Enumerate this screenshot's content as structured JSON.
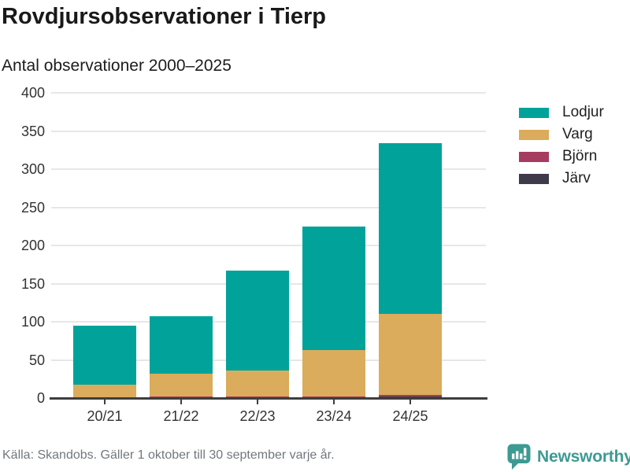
{
  "header": {
    "title": "Rovdjursobservationer i Tierp",
    "subtitle": "Antal observationer 2000–2025"
  },
  "chart_data": {
    "type": "bar",
    "stacked": true,
    "title": "Rovdjursobservationer i Tierp",
    "subtitle": "Antal observationer 2000–2025",
    "categories": [
      "20/21",
      "21/22",
      "22/23",
      "23/24",
      "24/25"
    ],
    "series": [
      {
        "name": "Lodjur",
        "color": "#00a29a",
        "values": [
          77,
          75,
          131,
          162,
          224
        ]
      },
      {
        "name": "Varg",
        "color": "#daac5b",
        "values": [
          18,
          30,
          34,
          61,
          106
        ]
      },
      {
        "name": "Björn",
        "color": "#a63c5f",
        "values": [
          0,
          2,
          2,
          2,
          2
        ]
      },
      {
        "name": "Järv",
        "color": "#3e3a4a",
        "values": [
          0,
          0,
          0,
          0,
          2
        ]
      }
    ],
    "totals": [
      95,
      107,
      167,
      225,
      334
    ],
    "xlabel": "",
    "ylabel": "Antal observationer",
    "ylim": [
      0,
      400
    ],
    "yticks": [
      0,
      50,
      100,
      150,
      200,
      250,
      300,
      350,
      400
    ],
    "grid": true,
    "legend_position": "right"
  },
  "footer": {
    "source": "Källa: Skandobs. Gäller 1 oktober till 30 september varje år.",
    "brand": "Newsworthy"
  },
  "colors": {
    "lodjur": "#00a29a",
    "varg": "#daac5b",
    "bjorn": "#a63c5f",
    "jarv": "#3e3a4a",
    "axis": "#3e3e3e",
    "gridline": "#e7e7e7",
    "brand_teal": "#3d9a93",
    "source_gray": "#72777c"
  }
}
